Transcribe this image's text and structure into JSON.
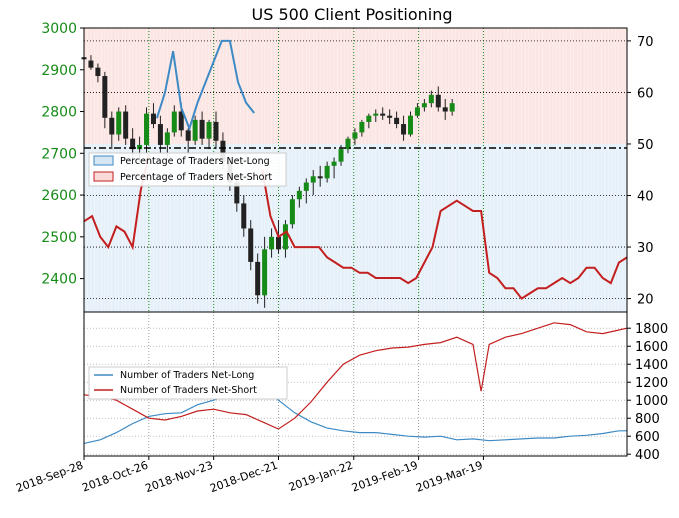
{
  "chart_data": [
    {
      "type": "candlestick-line",
      "title": "US 500 Client Positioning",
      "x_dates": [
        "2018-Sep-28",
        "2018-Oct-26",
        "2018-Nov-23",
        "2018-Dec-21",
        "2019-Jan-22",
        "2019-Feb-19",
        "2019-Mar-19"
      ],
      "left_axis": {
        "ticks": [
          2400,
          2500,
          2600,
          2700,
          2800,
          2900,
          3000
        ],
        "range": [
          2320,
          3000
        ],
        "color": "#178b17"
      },
      "right_axis": {
        "ticks": [
          20,
          30,
          40,
          50,
          60,
          70
        ],
        "range": [
          17.4,
          72.5
        ]
      },
      "reference_line": 50,
      "legend": [
        "Percentage of Traders Net-Long",
        "Percentage of Traders Net-Short"
      ],
      "colors": {
        "long": "#3d8ac5",
        "short": "#c31f1f",
        "long_fill": "#d6e6f5",
        "short_fill": "#fadbd9",
        "candle": "#178b17",
        "wick": "#222222"
      },
      "pct_net_long": [
        [
          0,
          35
        ],
        [
          7,
          36
        ],
        [
          14,
          32
        ],
        [
          21,
          30
        ],
        [
          28,
          34
        ],
        [
          35,
          33
        ],
        [
          42,
          30
        ],
        [
          49,
          41
        ],
        [
          56,
          48
        ],
        [
          63,
          55
        ],
        [
          70,
          60
        ],
        [
          77,
          68
        ],
        [
          84,
          57
        ],
        [
          91,
          53
        ],
        [
          98,
          58
        ],
        [
          105,
          62
        ],
        [
          112,
          66
        ],
        [
          119,
          70
        ],
        [
          126,
          70
        ],
        [
          133,
          62
        ],
        [
          140,
          58
        ],
        [
          147,
          56
        ],
        [
          154,
          45
        ],
        [
          161,
          36
        ],
        [
          168,
          32
        ],
        [
          175,
          33
        ],
        [
          182,
          30
        ],
        [
          189,
          30
        ],
        [
          196,
          30
        ],
        [
          203,
          30
        ],
        [
          210,
          28
        ],
        [
          217,
          27
        ],
        [
          224,
          26
        ],
        [
          231,
          26
        ],
        [
          238,
          25
        ],
        [
          245,
          25
        ],
        [
          252,
          24
        ],
        [
          259,
          24
        ],
        [
          266,
          24
        ],
        [
          273,
          24
        ],
        [
          280,
          23
        ],
        [
          287,
          24
        ],
        [
          294,
          27
        ],
        [
          301,
          30
        ],
        [
          308,
          37
        ],
        [
          315,
          38
        ],
        [
          322,
          39
        ],
        [
          329,
          38
        ],
        [
          336,
          37
        ],
        [
          343,
          37
        ],
        [
          350,
          25
        ],
        [
          357,
          24
        ],
        [
          364,
          22
        ],
        [
          371,
          22
        ],
        [
          378,
          20
        ],
        [
          385,
          21
        ],
        [
          392,
          22
        ],
        [
          399,
          22
        ],
        [
          406,
          23
        ],
        [
          413,
          24
        ],
        [
          420,
          23
        ],
        [
          427,
          24
        ],
        [
          434,
          26
        ],
        [
          441,
          26
        ],
        [
          448,
          24
        ],
        [
          455,
          23
        ],
        [
          462,
          27
        ],
        [
          469,
          28
        ]
      ],
      "price_candles": [
        {
          "d": 0,
          "o": 2930,
          "h": 2945,
          "l": 2915,
          "c": 2925
        },
        {
          "d": 6,
          "o": 2922,
          "h": 2935,
          "l": 2900,
          "c": 2905
        },
        {
          "d": 12,
          "o": 2905,
          "h": 2915,
          "l": 2870,
          "c": 2885
        },
        {
          "d": 18,
          "o": 2885,
          "h": 2895,
          "l": 2760,
          "c": 2785
        },
        {
          "d": 24,
          "o": 2785,
          "h": 2800,
          "l": 2710,
          "c": 2745
        },
        {
          "d": 30,
          "o": 2745,
          "h": 2810,
          "l": 2730,
          "c": 2800
        },
        {
          "d": 36,
          "o": 2800,
          "h": 2815,
          "l": 2720,
          "c": 2735
        },
        {
          "d": 42,
          "o": 2735,
          "h": 2760,
          "l": 2690,
          "c": 2710
        },
        {
          "d": 48,
          "o": 2710,
          "h": 2740,
          "l": 2680,
          "c": 2720
        },
        {
          "d": 54,
          "o": 2720,
          "h": 2810,
          "l": 2700,
          "c": 2795
        },
        {
          "d": 60,
          "o": 2795,
          "h": 2820,
          "l": 2760,
          "c": 2770
        },
        {
          "d": 66,
          "o": 2770,
          "h": 2790,
          "l": 2700,
          "c": 2720
        },
        {
          "d": 72,
          "o": 2720,
          "h": 2760,
          "l": 2690,
          "c": 2750
        },
        {
          "d": 78,
          "o": 2750,
          "h": 2815,
          "l": 2740,
          "c": 2800
        },
        {
          "d": 84,
          "o": 2800,
          "h": 2820,
          "l": 2740,
          "c": 2755
        },
        {
          "d": 90,
          "o": 2755,
          "h": 2760,
          "l": 2700,
          "c": 2730
        },
        {
          "d": 96,
          "o": 2730,
          "h": 2790,
          "l": 2720,
          "c": 2780
        },
        {
          "d": 102,
          "o": 2780,
          "h": 2800,
          "l": 2720,
          "c": 2735
        },
        {
          "d": 108,
          "o": 2735,
          "h": 2780,
          "l": 2710,
          "c": 2775
        },
        {
          "d": 114,
          "o": 2775,
          "h": 2800,
          "l": 2710,
          "c": 2730
        },
        {
          "d": 120,
          "o": 2730,
          "h": 2750,
          "l": 2660,
          "c": 2680
        },
        {
          "d": 126,
          "o": 2680,
          "h": 2690,
          "l": 2610,
          "c": 2630
        },
        {
          "d": 132,
          "o": 2630,
          "h": 2650,
          "l": 2560,
          "c": 2580
        },
        {
          "d": 138,
          "o": 2580,
          "h": 2600,
          "l": 2500,
          "c": 2520
        },
        {
          "d": 144,
          "o": 2520,
          "h": 2540,
          "l": 2420,
          "c": 2440
        },
        {
          "d": 150,
          "o": 2440,
          "h": 2460,
          "l": 2340,
          "c": 2360
        },
        {
          "d": 156,
          "o": 2360,
          "h": 2500,
          "l": 2330,
          "c": 2470
        },
        {
          "d": 162,
          "o": 2470,
          "h": 2520,
          "l": 2450,
          "c": 2500
        },
        {
          "d": 168,
          "o": 2500,
          "h": 2540,
          "l": 2460,
          "c": 2470
        },
        {
          "d": 174,
          "o": 2470,
          "h": 2540,
          "l": 2450,
          "c": 2530
        },
        {
          "d": 180,
          "o": 2530,
          "h": 2600,
          "l": 2520,
          "c": 2590
        },
        {
          "d": 186,
          "o": 2590,
          "h": 2620,
          "l": 2570,
          "c": 2610
        },
        {
          "d": 192,
          "o": 2610,
          "h": 2640,
          "l": 2580,
          "c": 2630
        },
        {
          "d": 198,
          "o": 2630,
          "h": 2660,
          "l": 2600,
          "c": 2645
        },
        {
          "d": 204,
          "o": 2645,
          "h": 2670,
          "l": 2620,
          "c": 2640
        },
        {
          "d": 210,
          "o": 2640,
          "h": 2680,
          "l": 2630,
          "c": 2670
        },
        {
          "d": 216,
          "o": 2670,
          "h": 2690,
          "l": 2640,
          "c": 2680
        },
        {
          "d": 222,
          "o": 2680,
          "h": 2720,
          "l": 2670,
          "c": 2710
        },
        {
          "d": 228,
          "o": 2710,
          "h": 2740,
          "l": 2700,
          "c": 2735
        },
        {
          "d": 234,
          "o": 2735,
          "h": 2760,
          "l": 2720,
          "c": 2750
        },
        {
          "d": 240,
          "o": 2750,
          "h": 2780,
          "l": 2740,
          "c": 2775
        },
        {
          "d": 246,
          "o": 2775,
          "h": 2795,
          "l": 2760,
          "c": 2790
        },
        {
          "d": 252,
          "o": 2790,
          "h": 2805,
          "l": 2775,
          "c": 2795
        },
        {
          "d": 258,
          "o": 2795,
          "h": 2810,
          "l": 2780,
          "c": 2790
        },
        {
          "d": 264,
          "o": 2790,
          "h": 2805,
          "l": 2770,
          "c": 2785
        },
        {
          "d": 270,
          "o": 2785,
          "h": 2800,
          "l": 2760,
          "c": 2770
        },
        {
          "d": 276,
          "o": 2770,
          "h": 2790,
          "l": 2730,
          "c": 2745
        },
        {
          "d": 282,
          "o": 2745,
          "h": 2800,
          "l": 2740,
          "c": 2790
        },
        {
          "d": 288,
          "o": 2790,
          "h": 2820,
          "l": 2785,
          "c": 2810
        },
        {
          "d": 294,
          "o": 2810,
          "h": 2830,
          "l": 2800,
          "c": 2820
        },
        {
          "d": 300,
          "o": 2820,
          "h": 2850,
          "l": 2810,
          "c": 2840
        },
        {
          "d": 306,
          "o": 2840,
          "h": 2860,
          "l": 2800,
          "c": 2810
        },
        {
          "d": 312,
          "o": 2810,
          "h": 2830,
          "l": 2780,
          "c": 2800
        },
        {
          "d": 318,
          "o": 2800,
          "h": 2830,
          "l": 2790,
          "c": 2820
        }
      ],
      "legend_placement": "upper-left"
    },
    {
      "type": "line",
      "x_dates": [
        "2018-Sep-28",
        "2018-Oct-26",
        "2018-Nov-23",
        "2018-Dec-21",
        "2019-Jan-22",
        "2019-Feb-19",
        "2019-Mar-19"
      ],
      "y_ticks": [
        400,
        600,
        800,
        1000,
        1200,
        1400,
        1600,
        1800
      ],
      "ylim": [
        380,
        1980
      ],
      "legend": [
        "Number of Traders Net-Long",
        "Number of Traders Net-Short"
      ],
      "legend_placement": "left",
      "series": [
        {
          "name": "Number of Traders Net-Long",
          "color": "#3d8ac5",
          "values": [
            [
              0,
              520
            ],
            [
              14,
              560
            ],
            [
              28,
              640
            ],
            [
              42,
              740
            ],
            [
              56,
              820
            ],
            [
              70,
              850
            ],
            [
              84,
              860
            ],
            [
              98,
              950
            ],
            [
              112,
              1000
            ],
            [
              126,
              1060
            ],
            [
              140,
              1140
            ],
            [
              154,
              1120
            ],
            [
              168,
              1000
            ],
            [
              182,
              860
            ],
            [
              196,
              760
            ],
            [
              210,
              690
            ],
            [
              224,
              660
            ],
            [
              238,
              640
            ],
            [
              252,
              640
            ],
            [
              266,
              620
            ],
            [
              280,
              600
            ],
            [
              294,
              590
            ],
            [
              308,
              600
            ],
            [
              322,
              560
            ],
            [
              336,
              570
            ],
            [
              350,
              550
            ],
            [
              364,
              560
            ],
            [
              378,
              570
            ],
            [
              392,
              580
            ],
            [
              406,
              580
            ],
            [
              420,
              600
            ],
            [
              434,
              610
            ],
            [
              448,
              630
            ],
            [
              462,
              660
            ],
            [
              469,
              660
            ]
          ]
        },
        {
          "name": "Number of Traders Net-Short",
          "color": "#c31f1f",
          "values": [
            [
              0,
              1060
            ],
            [
              14,
              1040
            ],
            [
              28,
              1000
            ],
            [
              42,
              900
            ],
            [
              56,
              800
            ],
            [
              70,
              780
            ],
            [
              84,
              820
            ],
            [
              98,
              880
            ],
            [
              112,
              900
            ],
            [
              126,
              860
            ],
            [
              140,
              840
            ],
            [
              154,
              760
            ],
            [
              168,
              680
            ],
            [
              182,
              800
            ],
            [
              196,
              980
            ],
            [
              210,
              1200
            ],
            [
              224,
              1400
            ],
            [
              238,
              1500
            ],
            [
              252,
              1550
            ],
            [
              266,
              1580
            ],
            [
              280,
              1590
            ],
            [
              294,
              1620
            ],
            [
              308,
              1640
            ],
            [
              322,
              1700
            ],
            [
              336,
              1620
            ],
            [
              343,
              1100
            ],
            [
              350,
              1620
            ],
            [
              364,
              1700
            ],
            [
              378,
              1740
            ],
            [
              392,
              1800
            ],
            [
              406,
              1860
            ],
            [
              420,
              1840
            ],
            [
              434,
              1760
            ],
            [
              448,
              1740
            ],
            [
              462,
              1780
            ],
            [
              469,
              1800
            ]
          ]
        }
      ]
    }
  ]
}
